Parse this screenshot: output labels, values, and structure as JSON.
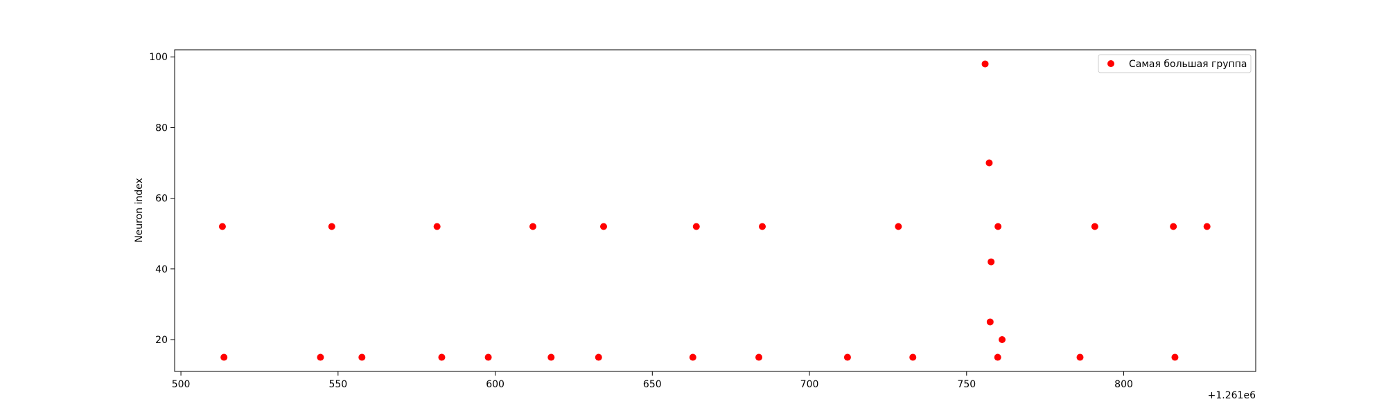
{
  "chart_data": {
    "type": "scatter",
    "xlabel": "",
    "ylabel": "Neuron index",
    "x_offset_label": "+1.261e6",
    "xlim": [
      498,
      842
    ],
    "ylim": [
      11,
      102
    ],
    "xticks": [
      500,
      550,
      600,
      650,
      700,
      750,
      800
    ],
    "yticks": [
      20,
      40,
      60,
      80,
      100
    ],
    "x_tick_labels": [
      "500",
      "550",
      "600",
      "650",
      "700",
      "750",
      "800"
    ],
    "y_tick_labels": [
      "20",
      "40",
      "60",
      "80",
      "100"
    ],
    "grid": false,
    "legend_position": "top-right",
    "series": [
      {
        "name": "Самая большая группа",
        "color": "#ff0000",
        "points": [
          {
            "x": 513.2,
            "y": 52
          },
          {
            "x": 548.0,
            "y": 52
          },
          {
            "x": 581.5,
            "y": 52
          },
          {
            "x": 612.0,
            "y": 52
          },
          {
            "x": 634.5,
            "y": 52
          },
          {
            "x": 664.0,
            "y": 52
          },
          {
            "x": 685.0,
            "y": 52
          },
          {
            "x": 728.3,
            "y": 52
          },
          {
            "x": 760.0,
            "y": 52
          },
          {
            "x": 790.8,
            "y": 52
          },
          {
            "x": 815.8,
            "y": 52
          },
          {
            "x": 826.5,
            "y": 52
          },
          {
            "x": 513.7,
            "y": 15
          },
          {
            "x": 544.4,
            "y": 15
          },
          {
            "x": 557.6,
            "y": 15
          },
          {
            "x": 583.0,
            "y": 15
          },
          {
            "x": 597.8,
            "y": 15
          },
          {
            "x": 617.8,
            "y": 15
          },
          {
            "x": 632.9,
            "y": 15
          },
          {
            "x": 662.9,
            "y": 15
          },
          {
            "x": 683.9,
            "y": 15
          },
          {
            "x": 712.1,
            "y": 15
          },
          {
            "x": 732.9,
            "y": 15
          },
          {
            "x": 759.9,
            "y": 15
          },
          {
            "x": 786.1,
            "y": 15
          },
          {
            "x": 816.3,
            "y": 15
          },
          {
            "x": 755.9,
            "y": 98
          },
          {
            "x": 757.2,
            "y": 70
          },
          {
            "x": 757.8,
            "y": 42
          },
          {
            "x": 757.5,
            "y": 25
          },
          {
            "x": 761.3,
            "y": 20
          }
        ]
      }
    ]
  }
}
